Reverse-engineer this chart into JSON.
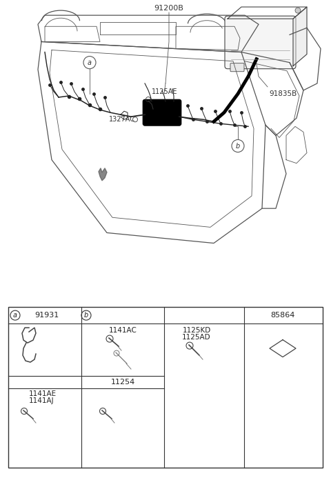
{
  "bg_color": "#ffffff",
  "fig_width": 4.8,
  "fig_height": 6.93,
  "dpi": 100,
  "labels": {
    "part_91200B": "91200B",
    "label_a": "a",
    "label_b": "b",
    "label_1125AE": "1125AE",
    "label_1327AC": "1327AC",
    "label_91835B": "91835B",
    "label_91931": "91931",
    "label_1141AC": "1141AC",
    "label_1125KD": "1125KD",
    "label_1125AD": "1125AD",
    "label_85864": "85864",
    "label_11254": "11254",
    "label_1141AE": "1141AE",
    "label_1141AJ": "1141AJ"
  }
}
